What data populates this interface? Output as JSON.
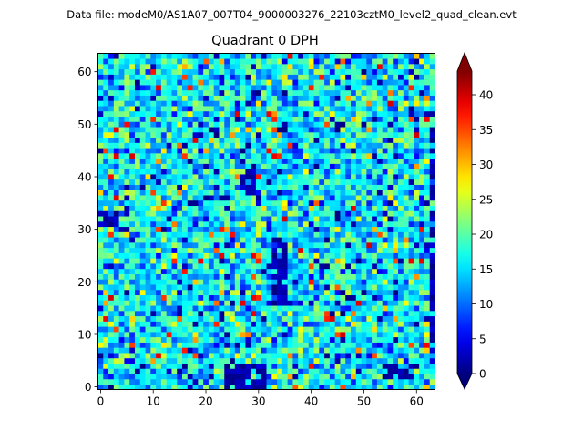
{
  "chart_data": {
    "type": "heatmap",
    "suptitle": "Data file: modeM0/AS1A07_007T04_9000003276_22103cztM0_level2_quad_clean.evt",
    "title": "Quadrant 0 DPH",
    "xlabel": "",
    "ylabel": "",
    "grid_size": [
      64,
      64
    ],
    "xlim": [
      -0.5,
      63.5
    ],
    "ylim": [
      -0.5,
      63.5
    ],
    "xticks": [
      0,
      10,
      20,
      30,
      40,
      50,
      60
    ],
    "yticks": [
      0,
      10,
      20,
      30,
      40,
      50,
      60
    ],
    "colormap": "jet",
    "colorbar": {
      "vmin": 0,
      "vmax": 43.4,
      "extend": "both",
      "ticks": [
        0,
        5,
        10,
        15,
        20,
        25,
        30,
        35,
        40
      ]
    },
    "typical_count": 16,
    "low_regions": [
      {
        "x": [
          24,
          31
        ],
        "y": [
          0,
          4
        ]
      },
      {
        "x": [
          0,
          3
        ],
        "y": [
          31,
          33
        ]
      },
      {
        "x": [
          54,
          60
        ],
        "y": [
          2,
          4
        ]
      },
      {
        "x": [
          63,
          63
        ],
        "y": [
          5,
          52
        ]
      },
      {
        "x": [
          27,
          29
        ],
        "y": [
          37,
          41
        ]
      },
      {
        "x": [
          33,
          35
        ],
        "y": [
          16,
          28
        ]
      }
    ]
  }
}
